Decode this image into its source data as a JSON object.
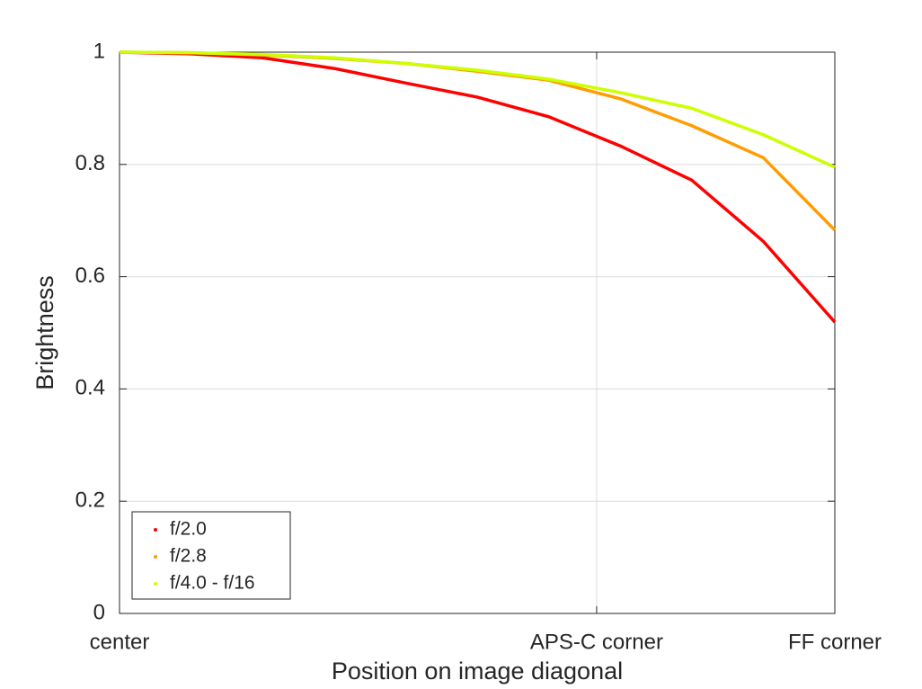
{
  "chart_data": {
    "type": "line",
    "xlabel": "Position on image diagonal",
    "ylabel": "Brightness",
    "x": [
      0,
      0.1,
      0.2,
      0.3,
      0.4,
      0.5,
      0.6,
      0.7,
      0.8,
      0.9,
      1
    ],
    "series": [
      {
        "name": "f/2.0",
        "color": "#ff0000",
        "values": [
          1.0,
          0.997,
          0.99,
          0.971,
          0.945,
          0.92,
          0.885,
          0.833,
          0.772,
          0.663,
          0.519
        ]
      },
      {
        "name": "f/2.8",
        "color": "#ff9c00",
        "values": [
          1.0,
          0.999,
          0.995,
          0.989,
          0.98,
          0.966,
          0.95,
          0.917,
          0.869,
          0.812,
          0.683
        ]
      },
      {
        "name": "f/4.0 - f/16",
        "color": "#ccff00",
        "values": [
          1.0,
          0.999,
          0.996,
          0.99,
          0.98,
          0.968,
          0.952,
          0.928,
          0.9,
          0.853,
          0.795
        ]
      }
    ],
    "xlim": [
      0,
      1
    ],
    "xticks": [
      {
        "value": 0,
        "label": "center"
      },
      {
        "value": 0.667,
        "label": "APS-C corner"
      },
      {
        "value": 1,
        "label": "FF corner"
      }
    ],
    "ylim": [
      0,
      1
    ],
    "yticks": [
      0,
      0.2,
      0.4,
      0.6,
      0.8,
      1
    ],
    "grid": true,
    "legend": "lower-left"
  }
}
